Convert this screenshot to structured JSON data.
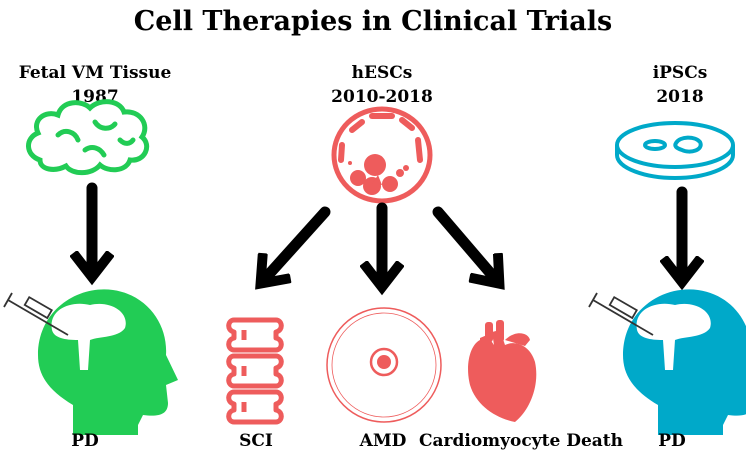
{
  "title": "Cell Therapies in Clinical Trials",
  "colors": {
    "fetal": "#22cc55",
    "hesc": "#ee5c5c",
    "ipsc": "#00a9c9",
    "arrow": "#000000"
  },
  "sources": [
    {
      "name": "Fetal VM Tissue",
      "year": "1987",
      "icon": "brain-icon"
    },
    {
      "name": "hESCs",
      "year": "2010-2018",
      "icon": "cell-icon"
    },
    {
      "name": "iPSCs",
      "year": "2018",
      "icon": "petri-dish-icon"
    }
  ],
  "targets": [
    {
      "label": "PD",
      "icon": "head-brain-injection-icon"
    },
    {
      "label": "SCI",
      "icon": "spine-icon"
    },
    {
      "label": "AMD",
      "icon": "eye-icon"
    },
    {
      "label": "Cardiomyocyte Death",
      "icon": "heart-icon"
    },
    {
      "label": "PD",
      "icon": "head-brain-injection-icon"
    }
  ]
}
